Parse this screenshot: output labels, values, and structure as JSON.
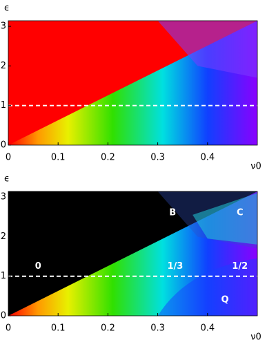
{
  "chart_data": [
    {
      "type": "heatmap",
      "xlabel": "ν0",
      "ylabel": "ϵ",
      "xlim": [
        0,
        0.5
      ],
      "ylim": [
        0,
        3.1416
      ],
      "xticks": [
        0,
        0.1,
        0.2,
        0.3,
        0.4
      ],
      "yticks": [
        0,
        1,
        2,
        3
      ],
      "hline": 1,
      "background": "#ff0000"
    },
    {
      "type": "heatmap",
      "xlabel": "ν0",
      "ylabel": "ϵ",
      "xlim": [
        0,
        0.5
      ],
      "ylim": [
        0,
        3.1416
      ],
      "xticks": [
        0,
        0.1,
        0.2,
        0.3,
        0.4
      ],
      "yticks": [
        0,
        1,
        2,
        3
      ],
      "hline": 1,
      "background": "#000000",
      "annotations": [
        "B",
        "C",
        "0",
        "1/3",
        "1/2",
        "Q"
      ]
    }
  ]
}
